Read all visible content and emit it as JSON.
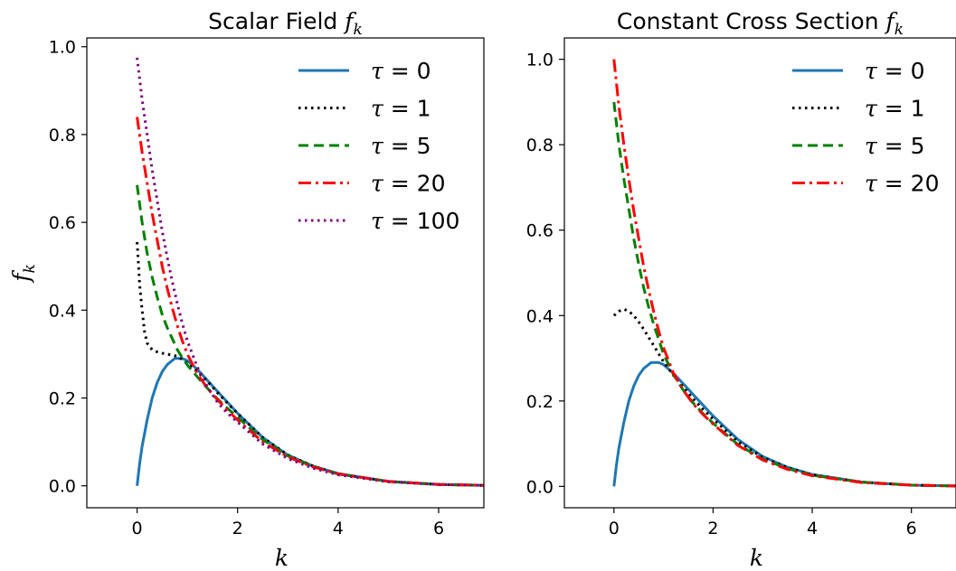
{
  "chart_data": [
    {
      "type": "line",
      "title": "Scalar Field",
      "title_symbol": "f_k",
      "xlabel": "k",
      "ylabel": "f_k",
      "xlim": [
        -1.0,
        6.9
      ],
      "ylim": [
        -0.05,
        1.02
      ],
      "xticks": [
        0,
        2,
        4,
        6
      ],
      "xtick_labels": [
        "0",
        "2",
        "4",
        "6"
      ],
      "yticks": [
        0.0,
        0.2,
        0.4,
        0.6,
        0.8,
        1.0
      ],
      "ytick_labels": [
        "0.0",
        "0.2",
        "0.4",
        "0.6",
        "0.8",
        "1.0"
      ],
      "grid": false,
      "legend_position": "top-right",
      "series": [
        {
          "name": "τ = 0",
          "color": "#1f77b4",
          "style": "solid",
          "x": [
            0,
            0.05,
            0.1,
            0.2,
            0.3,
            0.4,
            0.5,
            0.6,
            0.75,
            0.9,
            1.0,
            1.2,
            1.4,
            1.6,
            1.8,
            2.0,
            2.5,
            3.0,
            3.5,
            4.0,
            5.0,
            6.0,
            6.9
          ],
          "y": [
            0.0,
            0.05,
            0.09,
            0.15,
            0.2,
            0.235,
            0.26,
            0.276,
            0.29,
            0.29,
            0.285,
            0.265,
            0.24,
            0.215,
            0.19,
            0.165,
            0.11,
            0.07,
            0.045,
            0.028,
            0.01,
            0.003,
            0.001
          ]
        },
        {
          "name": "τ = 1",
          "color": "#000000",
          "style": "dotted",
          "x": [
            0,
            0.02,
            0.05,
            0.1,
            0.15,
            0.2,
            0.3,
            0.4,
            0.5,
            0.6,
            0.8,
            1.0,
            1.2,
            1.4,
            1.6,
            1.8,
            2.0,
            2.5,
            3.0,
            3.5,
            4.0,
            5.0,
            6.0,
            6.9
          ],
          "y": [
            0.555,
            0.52,
            0.46,
            0.4,
            0.35,
            0.325,
            0.31,
            0.305,
            0.302,
            0.3,
            0.295,
            0.28,
            0.26,
            0.238,
            0.212,
            0.188,
            0.165,
            0.11,
            0.07,
            0.045,
            0.027,
            0.01,
            0.003,
            0.001
          ]
        },
        {
          "name": "τ = 5",
          "color": "#008000",
          "style": "dashed",
          "x": [
            0,
            0.1,
            0.2,
            0.3,
            0.4,
            0.5,
            0.6,
            0.7,
            0.8,
            0.9,
            1.0,
            1.2,
            1.4,
            1.6,
            1.8,
            2.0,
            2.5,
            3.0,
            3.5,
            4.0,
            5.0,
            6.0,
            6.9
          ],
          "y": [
            0.685,
            0.6,
            0.53,
            0.475,
            0.43,
            0.39,
            0.36,
            0.335,
            0.31,
            0.292,
            0.275,
            0.248,
            0.222,
            0.198,
            0.176,
            0.156,
            0.105,
            0.068,
            0.044,
            0.027,
            0.01,
            0.003,
            0.001
          ]
        },
        {
          "name": "τ = 20",
          "color": "#ff0000",
          "style": "dashdot",
          "x": [
            0,
            0.1,
            0.2,
            0.3,
            0.4,
            0.5,
            0.6,
            0.7,
            0.8,
            0.9,
            1.0,
            1.2,
            1.4,
            1.6,
            1.8,
            2.0,
            2.5,
            3.0,
            3.5,
            4.0,
            5.0,
            6.0,
            6.9
          ],
          "y": [
            0.84,
            0.76,
            0.69,
            0.62,
            0.56,
            0.5,
            0.45,
            0.405,
            0.365,
            0.33,
            0.3,
            0.255,
            0.222,
            0.196,
            0.172,
            0.15,
            0.1,
            0.066,
            0.043,
            0.027,
            0.01,
            0.003,
            0.001
          ]
        },
        {
          "name": "τ = 100",
          "color": "#800080",
          "style": "dotted",
          "x": [
            0,
            0.1,
            0.2,
            0.3,
            0.4,
            0.5,
            0.6,
            0.7,
            0.8,
            0.9,
            1.0,
            1.2,
            1.4,
            1.6,
            1.8,
            2.0,
            2.5,
            3.0,
            3.5,
            4.0,
            5.0,
            6.0,
            6.9
          ],
          "y": [
            0.975,
            0.88,
            0.8,
            0.72,
            0.65,
            0.58,
            0.52,
            0.465,
            0.415,
            0.37,
            0.33,
            0.27,
            0.225,
            0.19,
            0.165,
            0.145,
            0.095,
            0.062,
            0.04,
            0.025,
            0.009,
            0.003,
            0.001
          ]
        }
      ]
    },
    {
      "type": "line",
      "title": "Constant Cross Section",
      "title_symbol": "f_k",
      "xlabel": "k",
      "ylabel": "",
      "xlim": [
        -1.0,
        6.9
      ],
      "ylim": [
        -0.05,
        1.05
      ],
      "xticks": [
        0,
        2,
        4,
        6
      ],
      "xtick_labels": [
        "0",
        "2",
        "4",
        "6"
      ],
      "yticks": [
        0.0,
        0.2,
        0.4,
        0.6,
        0.8,
        1.0
      ],
      "ytick_labels": [
        "0.0",
        "0.2",
        "0.4",
        "0.6",
        "0.8",
        "1.0"
      ],
      "grid": false,
      "legend_position": "top-right",
      "series": [
        {
          "name": "τ = 0",
          "color": "#1f77b4",
          "style": "solid",
          "x": [
            0,
            0.05,
            0.1,
            0.2,
            0.3,
            0.4,
            0.5,
            0.6,
            0.75,
            0.9,
            1.0,
            1.2,
            1.4,
            1.6,
            1.8,
            2.0,
            2.5,
            3.0,
            3.5,
            4.0,
            5.0,
            6.0,
            6.9
          ],
          "y": [
            0.0,
            0.05,
            0.09,
            0.15,
            0.2,
            0.235,
            0.26,
            0.276,
            0.29,
            0.29,
            0.285,
            0.265,
            0.24,
            0.215,
            0.19,
            0.165,
            0.11,
            0.07,
            0.045,
            0.028,
            0.01,
            0.003,
            0.001
          ]
        },
        {
          "name": "τ = 1",
          "color": "#000000",
          "style": "dotted",
          "x": [
            0,
            0.1,
            0.2,
            0.3,
            0.4,
            0.5,
            0.6,
            0.8,
            1.0,
            1.2,
            1.4,
            1.6,
            1.8,
            2.0,
            2.5,
            3.0,
            3.5,
            4.0,
            5.0,
            6.0,
            6.9
          ],
          "y": [
            0.4,
            0.41,
            0.415,
            0.41,
            0.4,
            0.385,
            0.368,
            0.33,
            0.292,
            0.26,
            0.232,
            0.205,
            0.18,
            0.158,
            0.105,
            0.068,
            0.044,
            0.027,
            0.01,
            0.003,
            0.001
          ]
        },
        {
          "name": "τ = 5",
          "color": "#008000",
          "style": "dashed",
          "x": [
            0,
            0.1,
            0.2,
            0.3,
            0.4,
            0.5,
            0.6,
            0.7,
            0.8,
            0.9,
            1.0,
            1.2,
            1.4,
            1.6,
            1.8,
            2.0,
            2.5,
            3.0,
            3.5,
            4.0,
            5.0,
            6.0,
            6.9
          ],
          "y": [
            0.9,
            0.8,
            0.72,
            0.65,
            0.58,
            0.52,
            0.465,
            0.42,
            0.38,
            0.345,
            0.31,
            0.262,
            0.225,
            0.195,
            0.17,
            0.148,
            0.098,
            0.064,
            0.042,
            0.026,
            0.01,
            0.003,
            0.001
          ]
        },
        {
          "name": "τ = 20",
          "color": "#ff0000",
          "style": "dashdot",
          "x": [
            0,
            0.1,
            0.2,
            0.3,
            0.4,
            0.5,
            0.6,
            0.7,
            0.8,
            0.9,
            1.0,
            1.2,
            1.4,
            1.6,
            1.8,
            2.0,
            2.5,
            3.0,
            3.5,
            4.0,
            5.0,
            6.0,
            6.9
          ],
          "y": [
            1.0,
            0.89,
            0.8,
            0.72,
            0.645,
            0.58,
            0.515,
            0.46,
            0.41,
            0.365,
            0.325,
            0.265,
            0.225,
            0.193,
            0.168,
            0.146,
            0.096,
            0.062,
            0.04,
            0.025,
            0.009,
            0.003,
            0.001
          ]
        }
      ]
    }
  ]
}
